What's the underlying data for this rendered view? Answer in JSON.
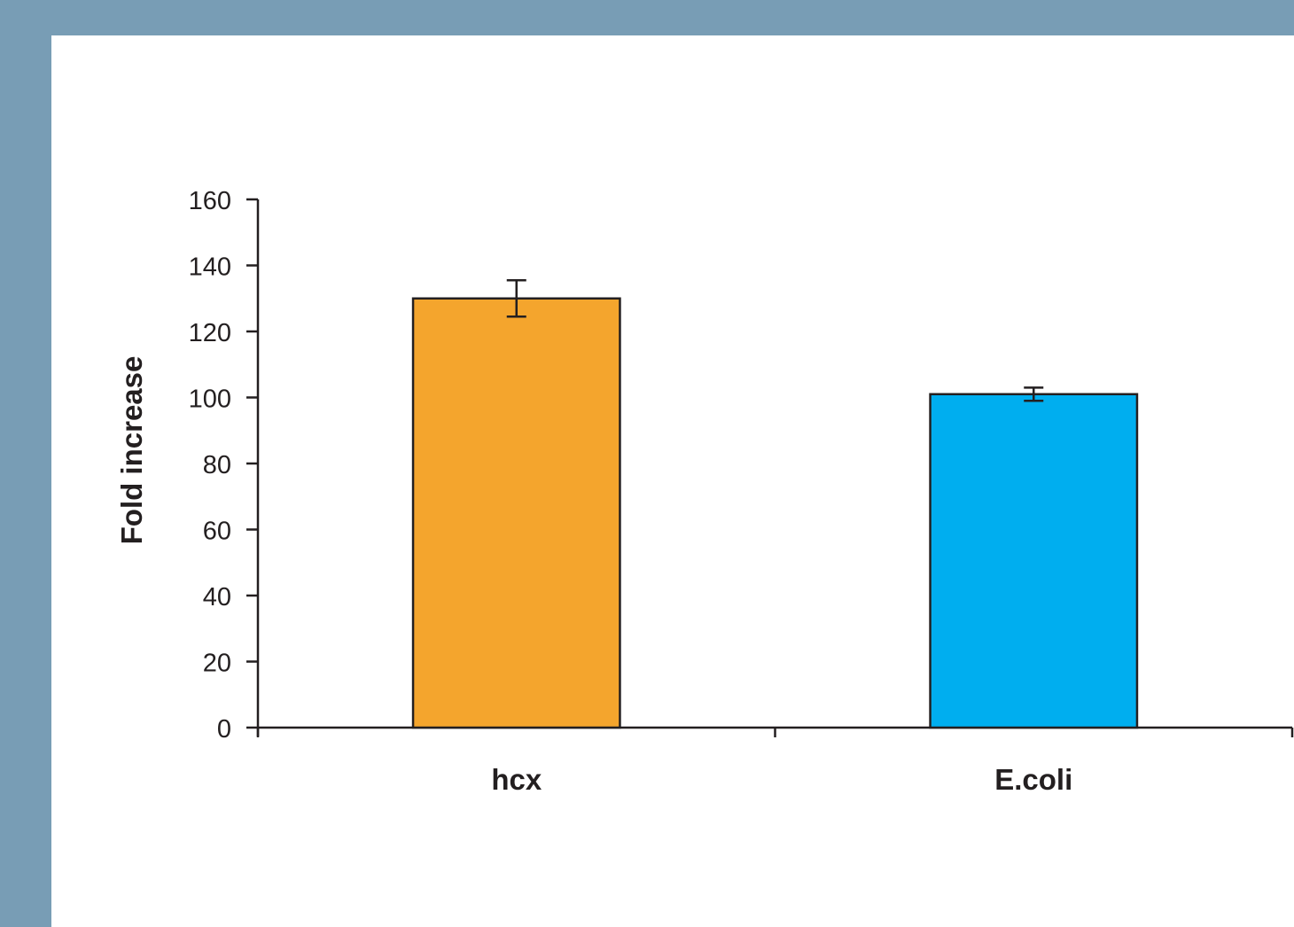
{
  "chart_data": {
    "type": "bar",
    "title": "",
    "xlabel": "",
    "ylabel": "Fold increase",
    "categories": [
      "hcx",
      "E.coli"
    ],
    "values": [
      130,
      101
    ],
    "error": [
      5.5,
      2
    ],
    "ylim": [
      0,
      160
    ],
    "yticks": [
      0,
      20,
      40,
      60,
      80,
      100,
      120,
      140,
      160
    ],
    "bar_colors": [
      "#f4a52d",
      "#00aeef"
    ],
    "grid": false,
    "legend": "none"
  }
}
